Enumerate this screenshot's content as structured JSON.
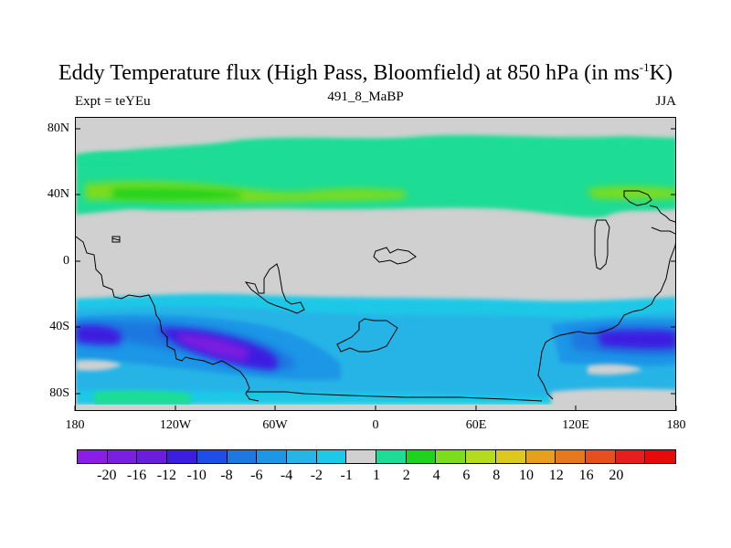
{
  "title": {
    "main": "Eddy Temperature flux (High Pass, Bloomfield) at 850 hPa (in ms",
    "superscript": "-1",
    "suffix": "K)"
  },
  "subtitle_left": "Expt = teYEu",
  "subtitle_center": "491_8_MaBP",
  "subtitle_right": "JJA",
  "map": {
    "y_ticks": [
      "80N",
      "40N",
      "0",
      "40S",
      "80S"
    ],
    "x_ticks": [
      "180",
      "120W",
      "60W",
      "0",
      "60E",
      "120E",
      "180"
    ],
    "lon_range": [
      -180,
      180
    ],
    "lat_range": [
      -90,
      90
    ],
    "background_color": "#d0d0d0"
  },
  "colorbar": {
    "colors": [
      "#8a1ee6",
      "#7a1ee0",
      "#6a1edc",
      "#3c1ee0",
      "#1e4ee6",
      "#1e78e0",
      "#1e96e6",
      "#28b4e6",
      "#1ec8e6",
      "#d0d0d0",
      "#1edc96",
      "#1ed21e",
      "#7cdc1e",
      "#b4dc1e",
      "#dcc81e",
      "#e6a01e",
      "#e6781e",
      "#e6501e",
      "#e61e1e",
      "#e60a0a"
    ],
    "labels": [
      "-20",
      "-16",
      "-12",
      "-10",
      "-8",
      "-6",
      "-4",
      "-2",
      "-1",
      "1",
      "2",
      "4",
      "6",
      "8",
      "10",
      "12",
      "16",
      "20"
    ]
  }
}
